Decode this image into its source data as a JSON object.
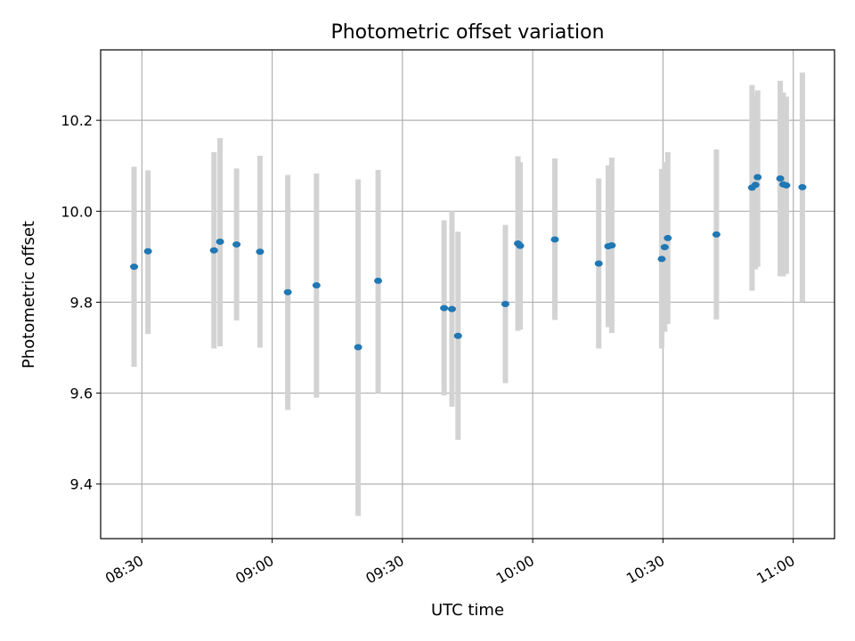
{
  "chart_data": {
    "type": "scatter",
    "title": "Photometric offset variation",
    "xlabel": "UTC time",
    "ylabel": "Photometric offset",
    "x_axis": "time",
    "xlim": [
      "08:20:30",
      "11:09:30"
    ],
    "ylim": [
      9.28,
      10.355
    ],
    "x_ticks": [
      "08:30",
      "09:00",
      "09:30",
      "10:00",
      "10:30",
      "11:00"
    ],
    "y_ticks": [
      9.4,
      9.6,
      9.8,
      10.0,
      10.2
    ],
    "grid": true,
    "marker_color": "#1f77b4",
    "errorbar_color": "#d3d3d3",
    "points": [
      {
        "time": "08:28:12",
        "y": 9.878,
        "lo": 9.658,
        "hi": 10.098
      },
      {
        "time": "08:31:24",
        "y": 9.912,
        "lo": 9.73,
        "hi": 10.09
      },
      {
        "time": "08:46:36",
        "y": 9.914,
        "lo": 9.698,
        "hi": 10.13
      },
      {
        "time": "08:48:00",
        "y": 9.933,
        "lo": 9.703,
        "hi": 10.161
      },
      {
        "time": "08:51:48",
        "y": 9.927,
        "lo": 9.76,
        "hi": 10.094
      },
      {
        "time": "08:57:12",
        "y": 9.911,
        "lo": 9.7,
        "hi": 10.122
      },
      {
        "time": "09:03:36",
        "y": 9.822,
        "lo": 9.563,
        "hi": 10.08
      },
      {
        "time": "09:10:12",
        "y": 9.837,
        "lo": 9.59,
        "hi": 10.083
      },
      {
        "time": "09:19:48",
        "y": 9.701,
        "lo": 9.33,
        "hi": 10.07
      },
      {
        "time": "09:24:24",
        "y": 9.847,
        "lo": 9.6,
        "hi": 10.091
      },
      {
        "time": "09:39:36",
        "y": 9.787,
        "lo": 9.595,
        "hi": 9.98
      },
      {
        "time": "09:41:24",
        "y": 9.785,
        "lo": 9.57,
        "hi": 10.0
      },
      {
        "time": "09:42:48",
        "y": 9.726,
        "lo": 9.497,
        "hi": 9.955
      },
      {
        "time": "09:53:42",
        "y": 9.796,
        "lo": 9.622,
        "hi": 9.97
      },
      {
        "time": "09:56:36",
        "y": 9.929,
        "lo": 9.737,
        "hi": 10.121
      },
      {
        "time": "09:57:06",
        "y": 9.924,
        "lo": 9.74,
        "hi": 10.108
      },
      {
        "time": "10:05:06",
        "y": 9.938,
        "lo": 9.761,
        "hi": 10.116
      },
      {
        "time": "10:15:12",
        "y": 9.885,
        "lo": 9.698,
        "hi": 10.072
      },
      {
        "time": "10:17:24",
        "y": 9.923,
        "lo": 9.745,
        "hi": 10.101
      },
      {
        "time": "10:18:12",
        "y": 9.925,
        "lo": 9.732,
        "hi": 10.118
      },
      {
        "time": "10:29:42",
        "y": 9.895,
        "lo": 9.698,
        "hi": 10.093
      },
      {
        "time": "10:30:24",
        "y": 9.921,
        "lo": 9.735,
        "hi": 10.108
      },
      {
        "time": "10:31:06",
        "y": 9.941,
        "lo": 9.752,
        "hi": 10.13
      },
      {
        "time": "10:42:18",
        "y": 9.949,
        "lo": 9.762,
        "hi": 10.136
      },
      {
        "time": "10:50:30",
        "y": 10.052,
        "lo": 9.825,
        "hi": 10.278
      },
      {
        "time": "10:51:18",
        "y": 10.058,
        "lo": 9.872,
        "hi": 10.252
      },
      {
        "time": "10:51:48",
        "y": 10.075,
        "lo": 9.878,
        "hi": 10.266
      },
      {
        "time": "10:57:00",
        "y": 10.072,
        "lo": 9.857,
        "hi": 10.287
      },
      {
        "time": "10:57:42",
        "y": 10.059,
        "lo": 9.857,
        "hi": 10.261
      },
      {
        "time": "10:58:24",
        "y": 10.057,
        "lo": 9.862,
        "hi": 10.252
      },
      {
        "time": "11:02:06",
        "y": 10.053,
        "lo": 9.801,
        "hi": 10.305
      }
    ]
  }
}
